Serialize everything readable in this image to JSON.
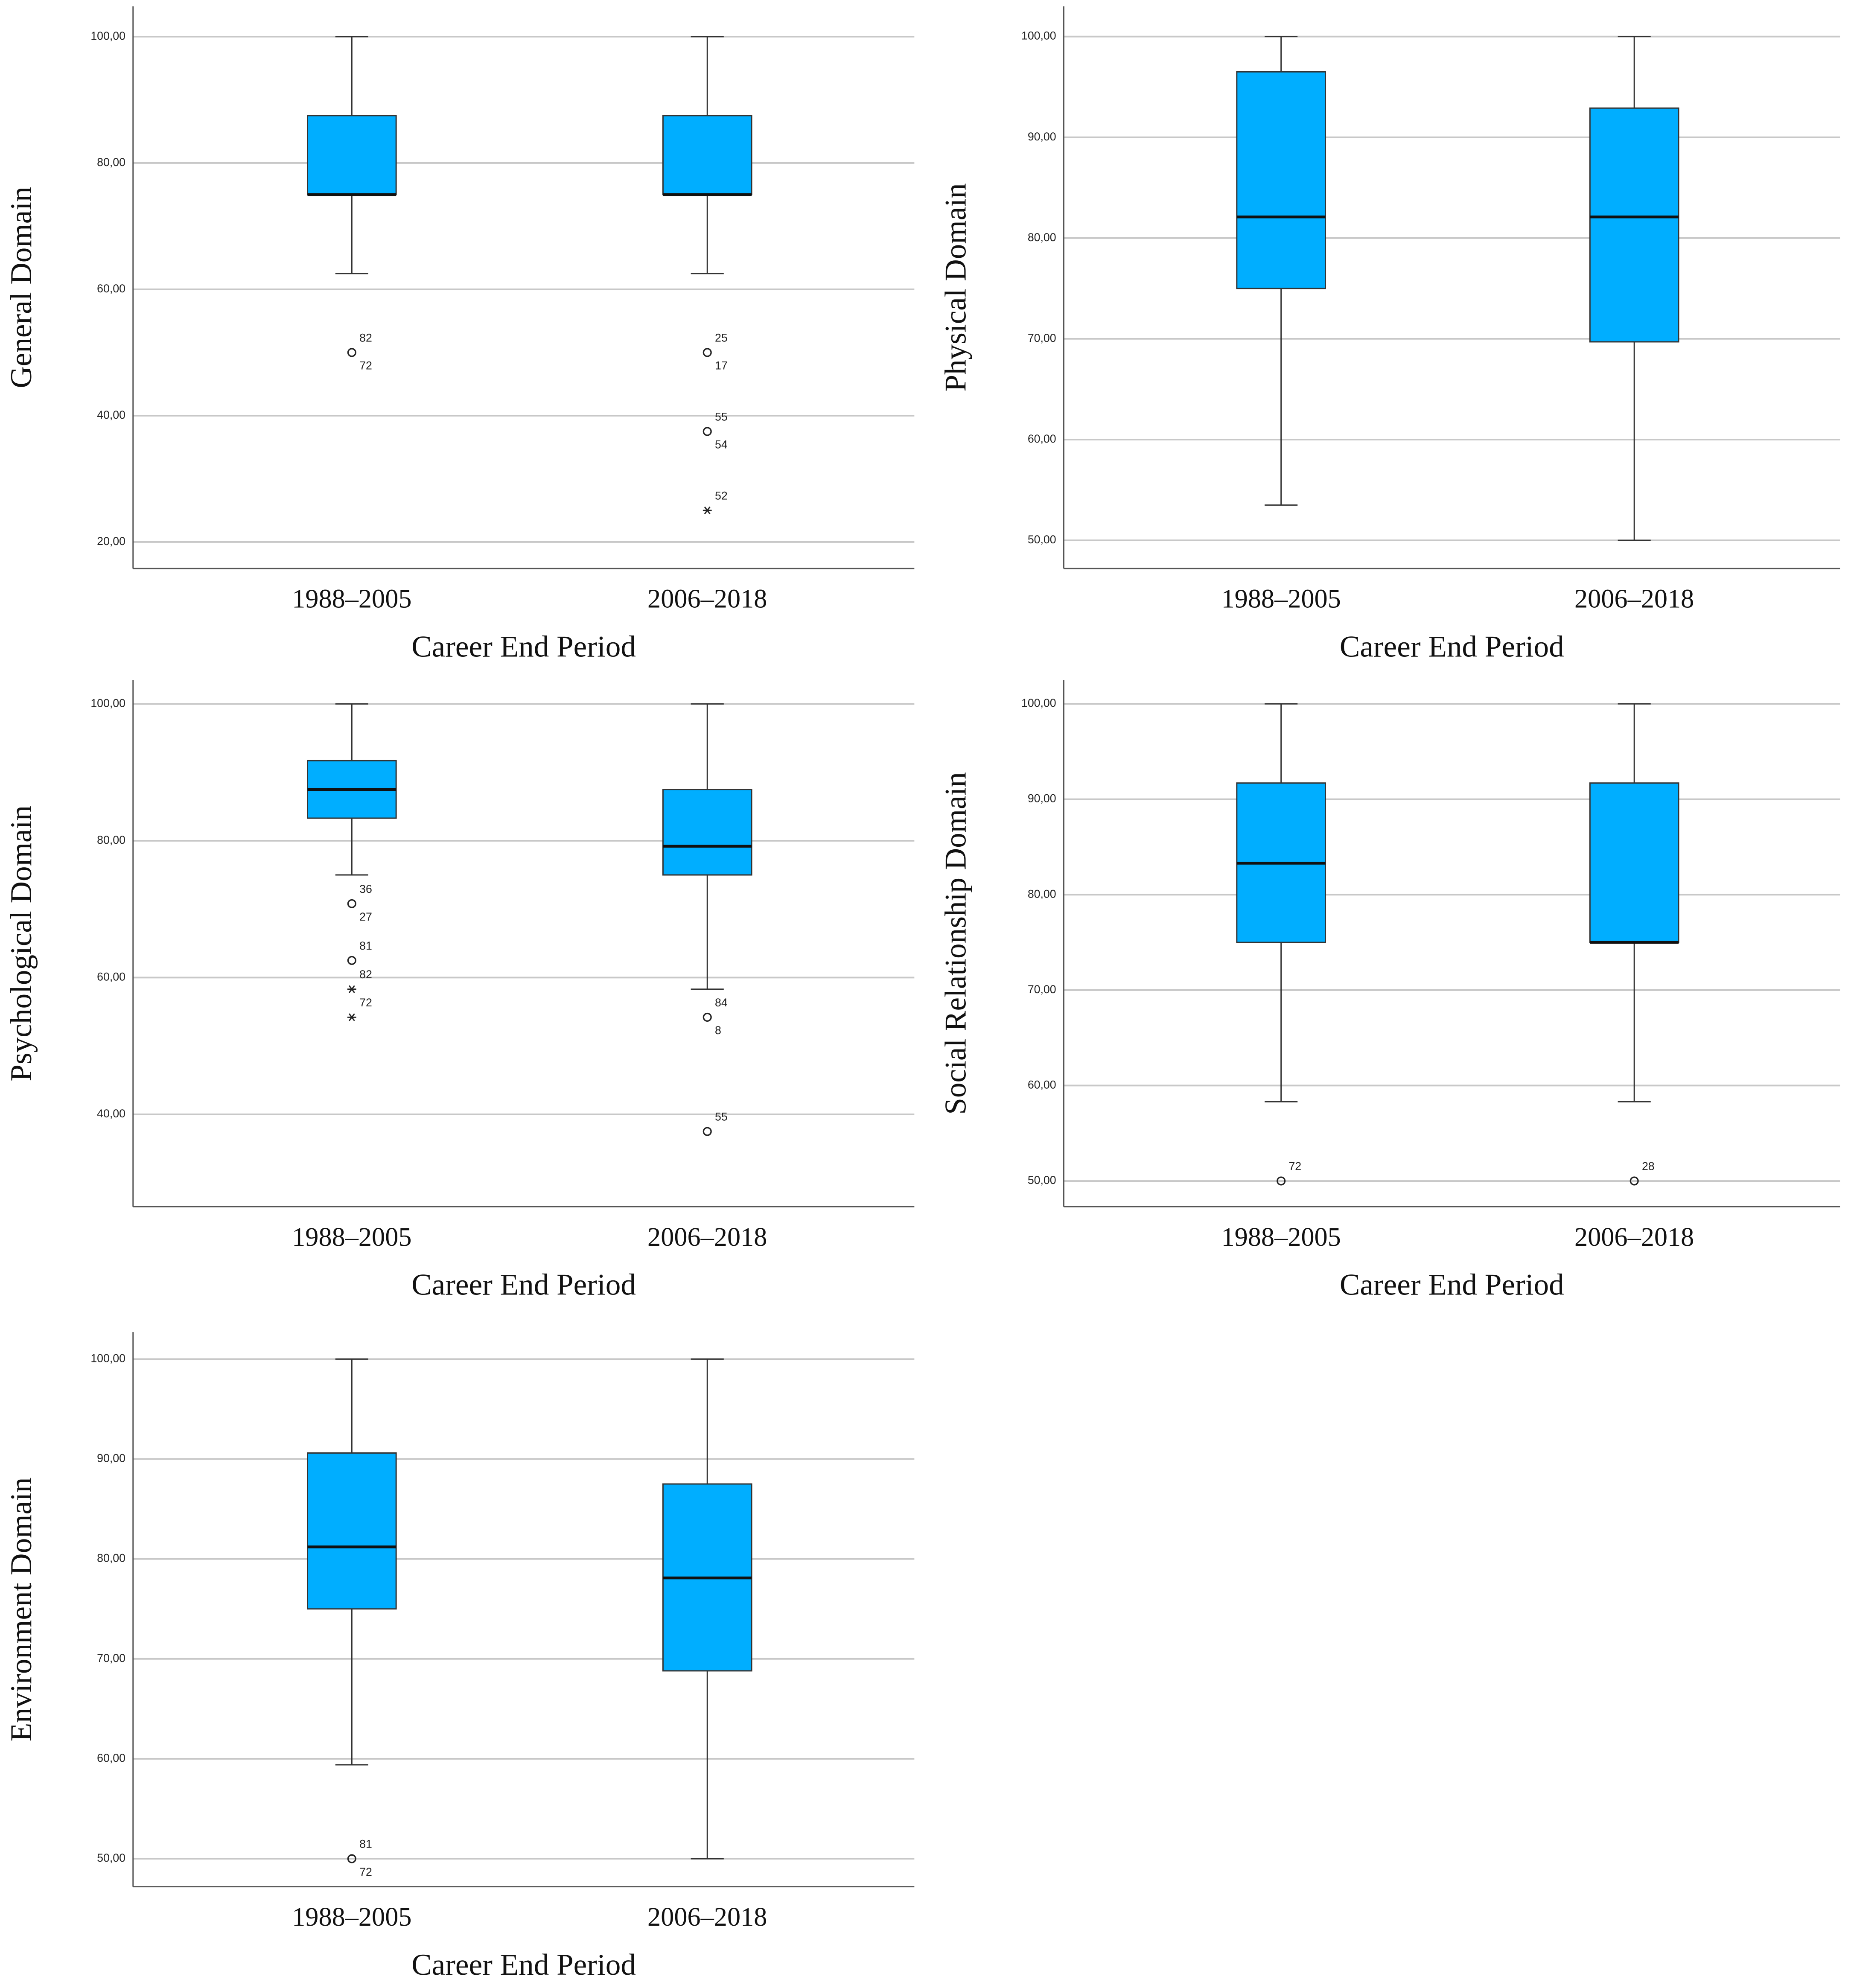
{
  "chart_data": [
    {
      "type": "box",
      "y_label": "General Domain",
      "x_label": "Career End Period",
      "categories": [
        "1988–2005",
        "2006–2018"
      ],
      "color": "#00aeff",
      "grid": true,
      "ylim": [
        15.8,
        104.8
      ],
      "yticks": [
        {
          "value": 20,
          "label": "20,00"
        },
        {
          "value": 40,
          "label": "40,00"
        },
        {
          "value": 60,
          "label": "60,00"
        },
        {
          "value": 80,
          "label": "80,00"
        },
        {
          "value": 100,
          "label": "100,00"
        }
      ],
      "boxes": [
        {
          "whisker_low": 62.5,
          "q1": 75,
          "median": 75,
          "q3": 87.5,
          "whisker_high": 100,
          "outliers": [
            {
              "value": 50,
              "marker": "circle",
              "labels": [
                "82",
                "72"
              ]
            }
          ]
        },
        {
          "whisker_low": 62.5,
          "q1": 75,
          "median": 75,
          "q3": 87.5,
          "whisker_high": 100,
          "outliers": [
            {
              "value": 50,
              "marker": "circle",
              "labels": [
                "25",
                "17"
              ]
            },
            {
              "value": 37.5,
              "marker": "circle",
              "labels": [
                "55",
                "54"
              ]
            },
            {
              "value": 25,
              "marker": "star",
              "labels": [
                "52"
              ]
            }
          ]
        }
      ]
    },
    {
      "type": "box",
      "y_label": "Physical Domain",
      "x_label": "Career End Period",
      "categories": [
        "1988–2005",
        "2006–2018"
      ],
      "color": "#00aeff",
      "grid": true,
      "ylim": [
        47.2,
        103
      ],
      "yticks": [
        {
          "value": 50,
          "label": "50,00"
        },
        {
          "value": 60,
          "label": "60,00"
        },
        {
          "value": 70,
          "label": "70,00"
        },
        {
          "value": 80,
          "label": "80,00"
        },
        {
          "value": 90,
          "label": "90,00"
        },
        {
          "value": 100,
          "label": "100,00"
        }
      ],
      "boxes": [
        {
          "whisker_low": 53.5,
          "q1": 75,
          "median": 82.1,
          "q3": 96.5,
          "whisker_high": 100,
          "outliers": []
        },
        {
          "whisker_low": 50,
          "q1": 69.7,
          "median": 82.1,
          "q3": 92.9,
          "whisker_high": 100,
          "outliers": []
        }
      ]
    },
    {
      "type": "box",
      "y_label": "Psychological Domain",
      "x_label": "Career End Period",
      "categories": [
        "1988–2005",
        "2006–2018"
      ],
      "color": "#00aeff",
      "grid": true,
      "ylim": [
        26.5,
        103.5
      ],
      "yticks": [
        {
          "value": 40,
          "label": "40,00"
        },
        {
          "value": 60,
          "label": "60,00"
        },
        {
          "value": 80,
          "label": "80,00"
        },
        {
          "value": 100,
          "label": "100,00"
        }
      ],
      "boxes": [
        {
          "whisker_low": 75,
          "q1": 83.3,
          "median": 87.5,
          "q3": 91.7,
          "whisker_high": 100,
          "outliers": [
            {
              "value": 70.8,
              "marker": "circle",
              "labels": [
                "36",
                "27"
              ]
            },
            {
              "value": 62.5,
              "marker": "circle",
              "labels": [
                "81"
              ]
            },
            {
              "value": 58.3,
              "marker": "star",
              "labels": [
                "82"
              ]
            },
            {
              "value": 54.2,
              "marker": "star",
              "labels": [
                "72"
              ]
            }
          ]
        },
        {
          "whisker_low": 58.3,
          "q1": 75,
          "median": 79.2,
          "q3": 87.5,
          "whisker_high": 100,
          "outliers": [
            {
              "value": 54.2,
              "marker": "circle",
              "labels": [
                "84",
                "8"
              ]
            },
            {
              "value": 37.5,
              "marker": "circle",
              "labels": [
                "55"
              ]
            }
          ]
        }
      ]
    },
    {
      "type": "box",
      "y_label": "Social Relationship Domain",
      "x_label": "Career End Period",
      "categories": [
        "1988–2005",
        "2006–2018"
      ],
      "color": "#00aeff",
      "grid": true,
      "ylim": [
        47.3,
        102.5
      ],
      "yticks": [
        {
          "value": 50,
          "label": "50,00"
        },
        {
          "value": 60,
          "label": "60,00"
        },
        {
          "value": 70,
          "label": "70,00"
        },
        {
          "value": 80,
          "label": "80,00"
        },
        {
          "value": 90,
          "label": "90,00"
        },
        {
          "value": 100,
          "label": "100,00"
        }
      ],
      "boxes": [
        {
          "whisker_low": 58.3,
          "q1": 75,
          "median": 83.3,
          "q3": 91.7,
          "whisker_high": 100,
          "outliers": [
            {
              "value": 50,
              "marker": "circle",
              "labels": [
                "72"
              ]
            }
          ]
        },
        {
          "whisker_low": 58.3,
          "q1": 75,
          "median": 75,
          "q3": 91.7,
          "whisker_high": 100,
          "outliers": [
            {
              "value": 50,
              "marker": "circle",
              "labels": [
                "28"
              ]
            }
          ]
        }
      ]
    },
    {
      "type": "box",
      "y_label": "Environment Domain",
      "x_label": "Career End Period",
      "categories": [
        "1988–2005",
        "2006–2018"
      ],
      "color": "#00aeff",
      "grid": true,
      "ylim": [
        47.2,
        102.7
      ],
      "yticks": [
        {
          "value": 50,
          "label": "50,00"
        },
        {
          "value": 60,
          "label": "60,00"
        },
        {
          "value": 70,
          "label": "70,00"
        },
        {
          "value": 80,
          "label": "80,00"
        },
        {
          "value": 90,
          "label": "90,00"
        },
        {
          "value": 100,
          "label": "100,00"
        }
      ],
      "boxes": [
        {
          "whisker_low": 59.4,
          "q1": 75,
          "median": 81.2,
          "q3": 90.6,
          "whisker_high": 100,
          "outliers": [
            {
              "value": 50,
              "marker": "circle",
              "labels": [
                "81",
                "72"
              ]
            }
          ]
        },
        {
          "whisker_low": 50,
          "q1": 68.8,
          "median": 78.1,
          "q3": 87.5,
          "whisker_high": 100,
          "outliers": []
        }
      ]
    }
  ]
}
